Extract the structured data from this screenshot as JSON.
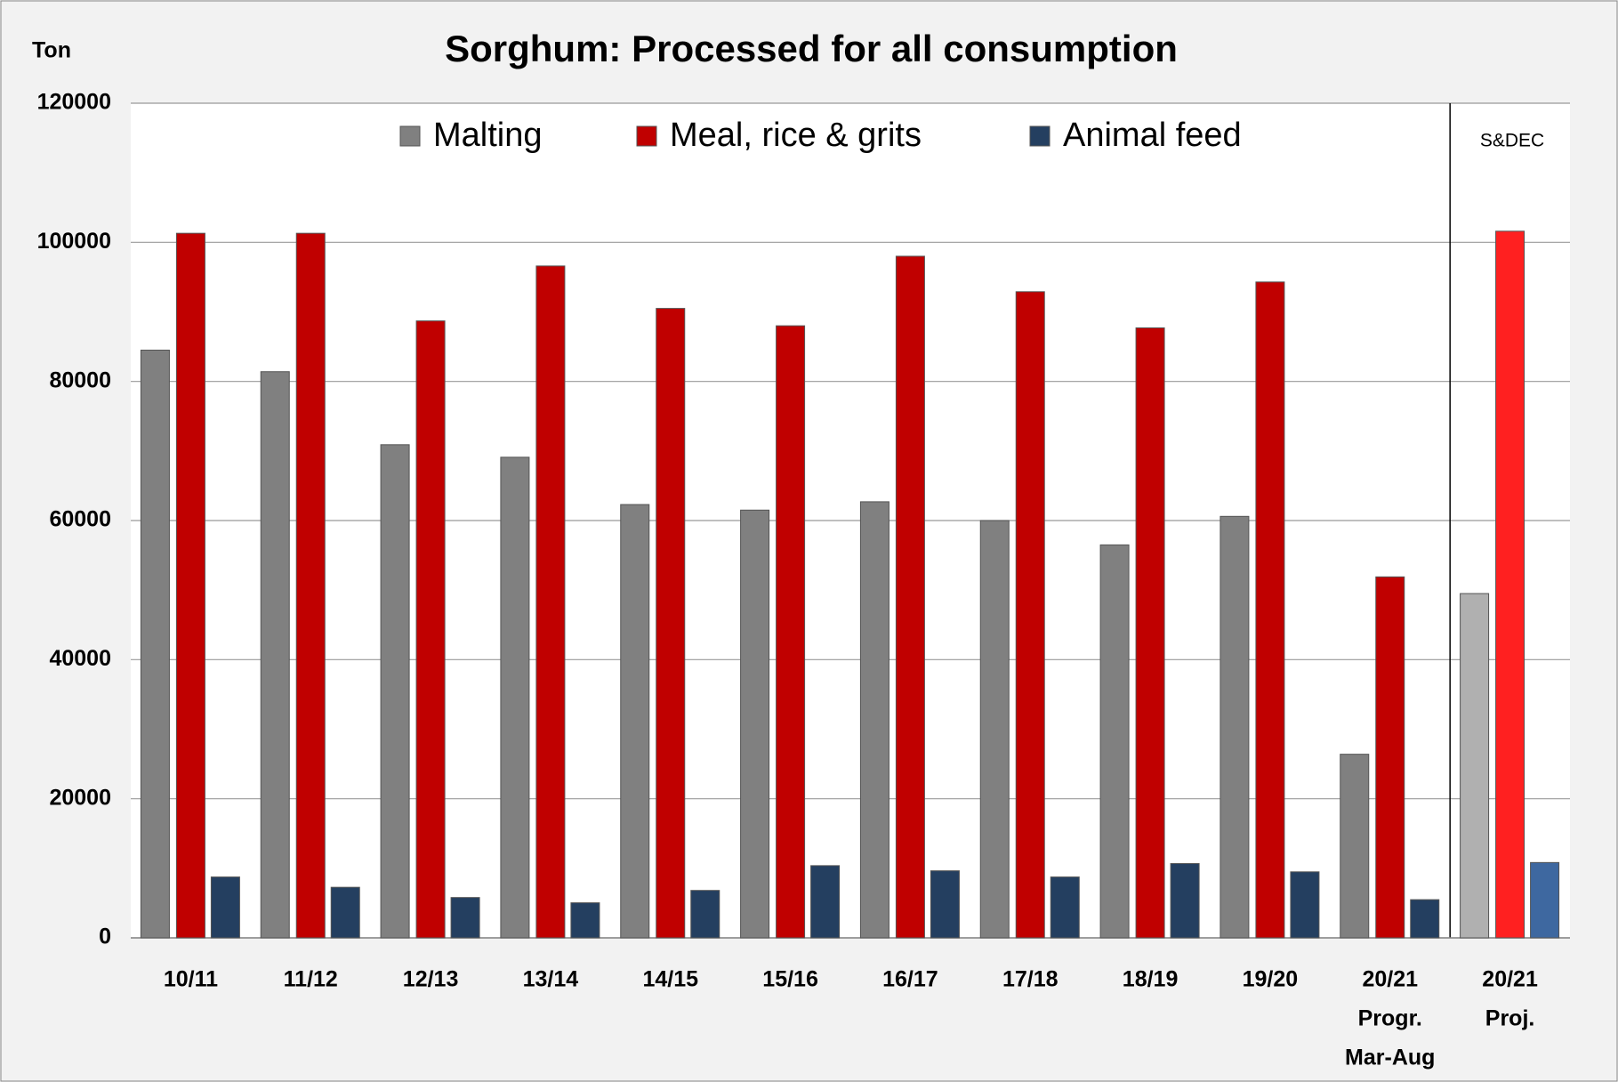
{
  "chart_data": {
    "type": "bar",
    "title": "Sorghum: Processed for all consumption",
    "y_label": "Ton",
    "annotation": "S&DEC",
    "categories": [
      [
        "10/11"
      ],
      [
        "11/12"
      ],
      [
        "12/13"
      ],
      [
        "13/14"
      ],
      [
        "14/15"
      ],
      [
        "15/16"
      ],
      [
        "16/17"
      ],
      [
        "17/18"
      ],
      [
        "18/19"
      ],
      [
        "19/20"
      ],
      [
        "20/21",
        "Progr.",
        "Mar-Aug"
      ],
      [
        "20/21",
        "Proj."
      ]
    ],
    "series": [
      {
        "name": "Malting",
        "color": "#808080",
        "projected_color": "#b0b0b0",
        "values": [
          84500,
          81400,
          70900,
          69100,
          62300,
          61500,
          62700,
          60000,
          56500,
          60600,
          26400,
          49500
        ]
      },
      {
        "name": "Meal, rice & grits",
        "color": "#c00000",
        "projected_color": "#ff2020",
        "values": [
          101300,
          101300,
          88700,
          96600,
          90500,
          88000,
          98000,
          92900,
          87700,
          94300,
          51900,
          101600
        ]
      },
      {
        "name": "Animal feed",
        "color": "#243f60",
        "projected_color": "#3e68a0",
        "values": [
          8750,
          7270,
          5800,
          5040,
          6820,
          10380,
          9640,
          8750,
          10680,
          9490,
          5490,
          10830
        ]
      }
    ],
    "projected_from": 11,
    "ylim": [
      0,
      120000
    ],
    "yticks": [
      0,
      20000,
      40000,
      60000,
      80000,
      100000,
      120000
    ],
    "grid": true
  }
}
